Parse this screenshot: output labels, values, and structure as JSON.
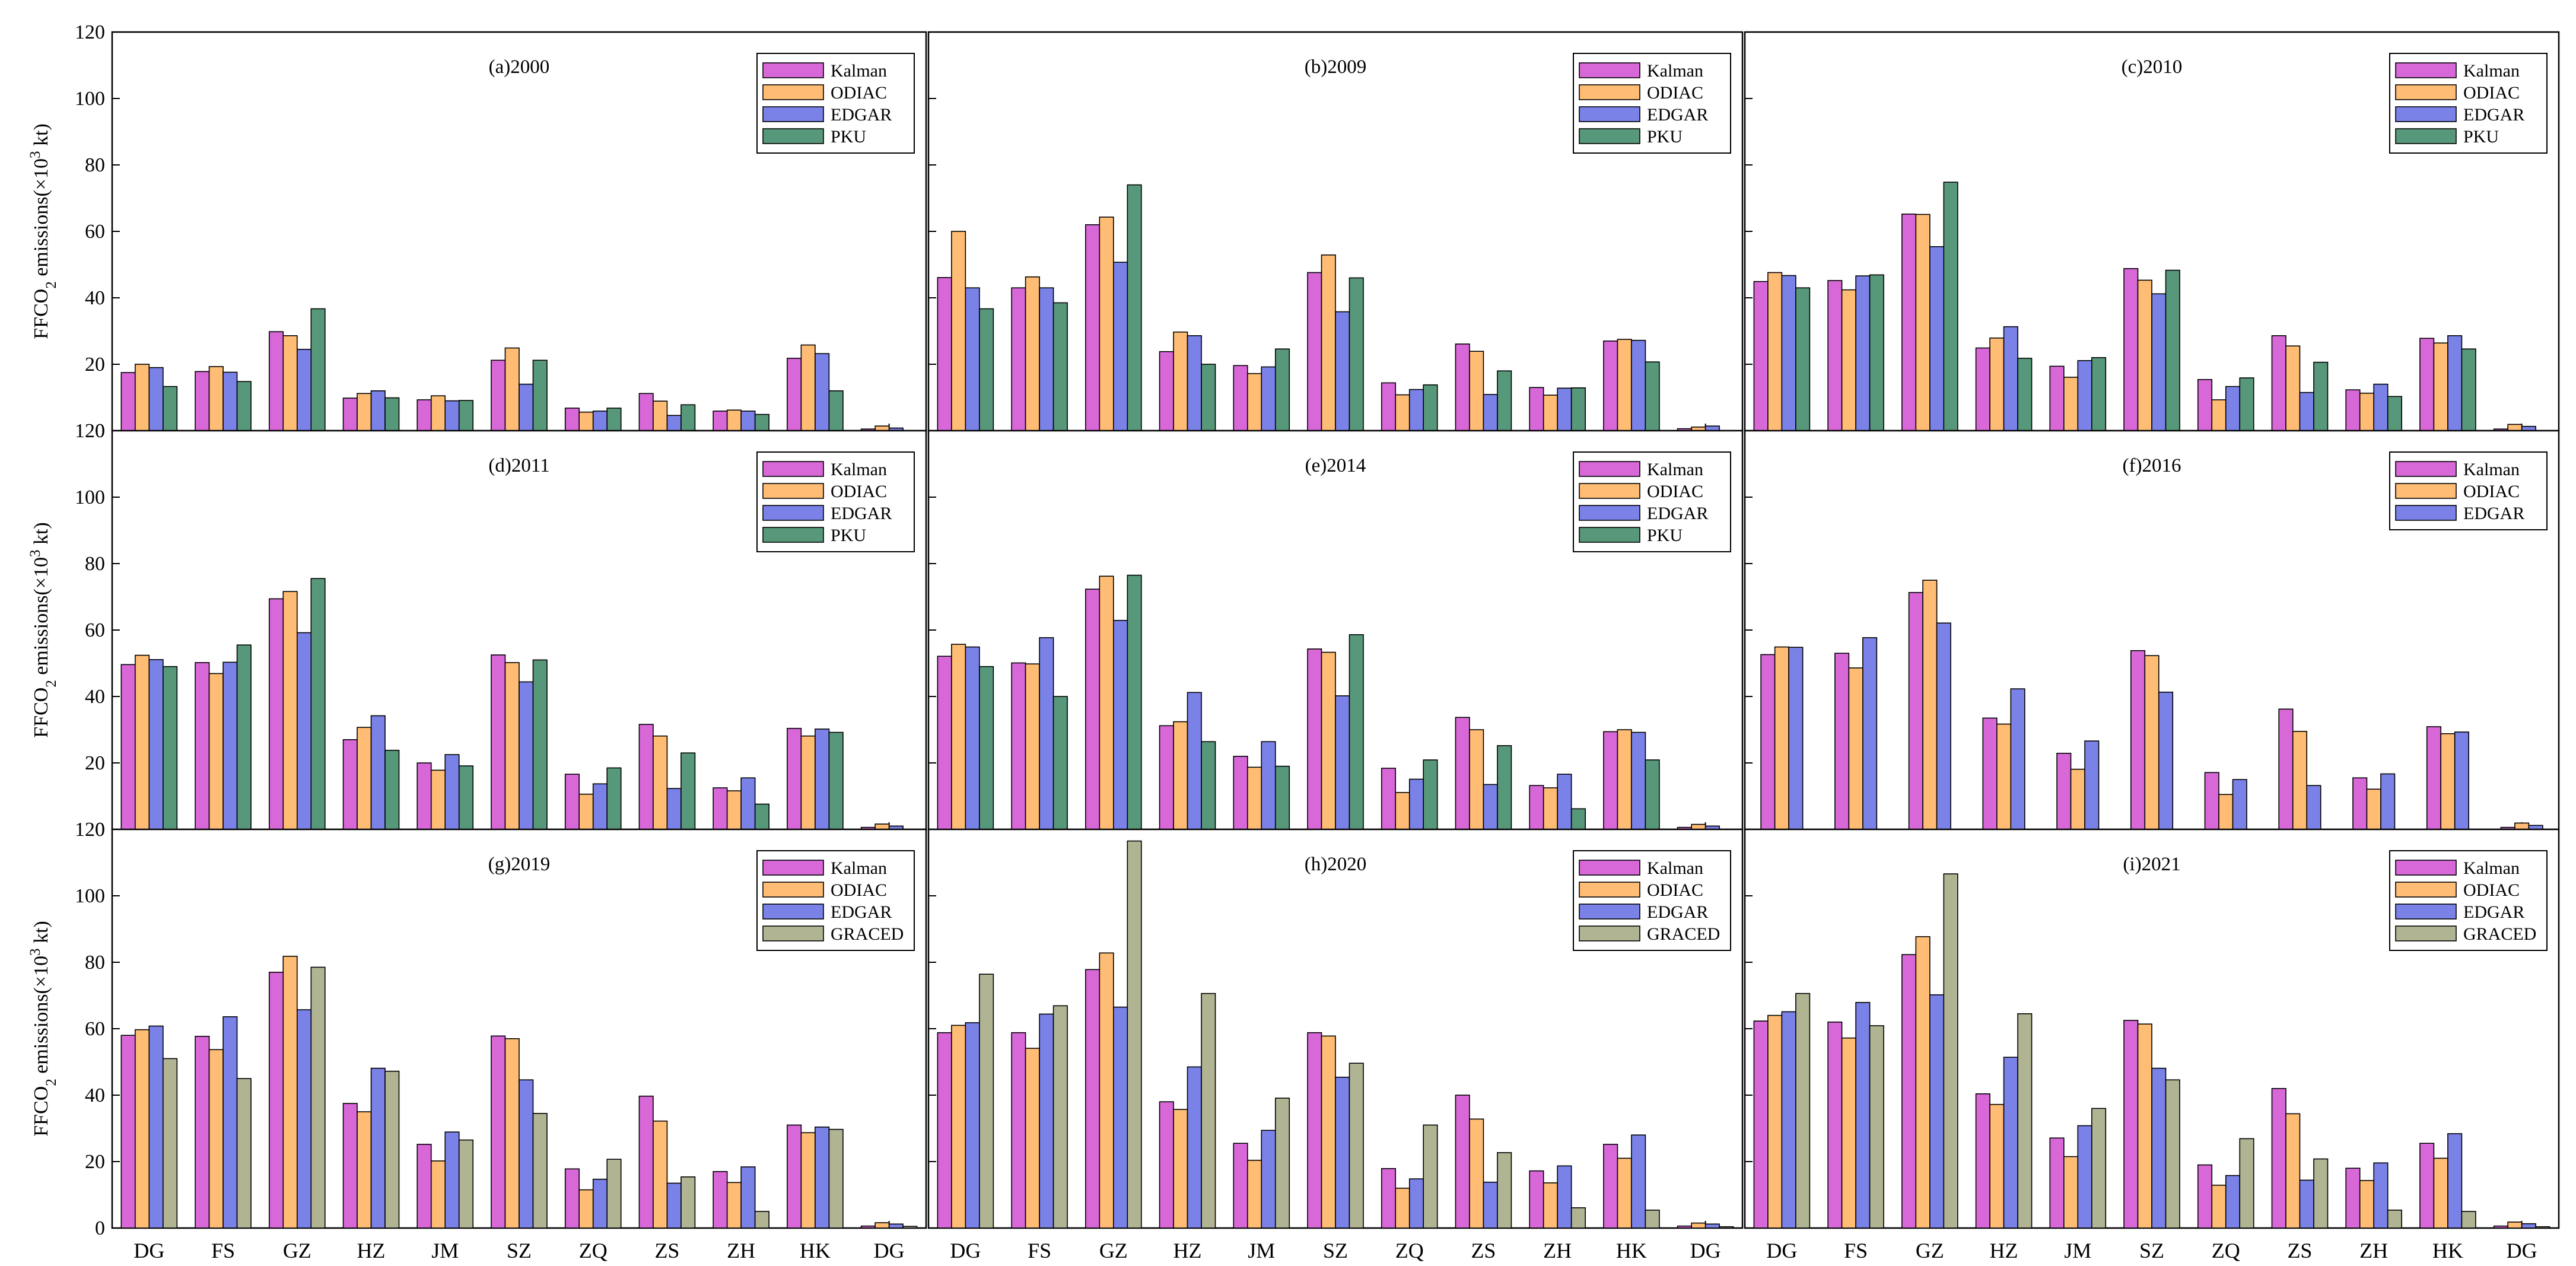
{
  "chart_data": {
    "type": "bar",
    "layout": "3x3 grid of grouped bar charts",
    "ylabel": "FFCO2 emissions(×10³ kt)",
    "ylabel_parts": {
      "main": "FFCO",
      "sub": "2",
      "mid": " emissions(×10",
      "sup": "3",
      "end": " kt)"
    },
    "ylim": [
      0,
      120
    ],
    "yticks": [
      "0",
      "20",
      "40",
      "60",
      "80",
      "100",
      "120"
    ],
    "categories": [
      "DG",
      "FS",
      "GZ",
      "HZ",
      "JM",
      "SZ",
      "ZQ",
      "ZS",
      "ZH",
      "HK",
      "DG"
    ],
    "series_colors": {
      "Kalman": "#d868d8",
      "ODIAC": "#ffbc74",
      "EDGAR": "#7a82e8",
      "PKU": "#58987a",
      "GRACED": "#b0b493"
    },
    "panels": [
      {
        "title": "(a)2000",
        "series": [
          {
            "name": "Kalman",
            "values": [
              17.5,
              17.8,
              29.8,
              9.8,
              9.3,
              21.2,
              6.8,
              11.2,
              5.9,
              21.8,
              0.5
            ]
          },
          {
            "name": "ODIAC",
            "values": [
              20,
              19.3,
              28.6,
              11.2,
              10.5,
              24.9,
              5.6,
              8.9,
              6.2,
              25.8,
              1.4
            ]
          },
          {
            "name": "EDGAR",
            "values": [
              19,
              17.6,
              24.5,
              12,
              9,
              14,
              5.9,
              4.6,
              5.9,
              23.2,
              0.8
            ]
          },
          {
            "name": "PKU",
            "values": [
              13.3,
              14.8,
              36.7,
              9.9,
              9.1,
              21.2,
              6.8,
              7.8,
              4.9,
              12,
              0
            ]
          }
        ]
      },
      {
        "title": "(b)2009",
        "series": [
          {
            "name": "Kalman",
            "values": [
              46.1,
              43,
              62,
              23.8,
              19.6,
              47.6,
              14.4,
              26.1,
              13,
              27,
              0.6
            ]
          },
          {
            "name": "ODIAC",
            "values": [
              60,
              46.3,
              64.3,
              29.7,
              17.2,
              52.9,
              10.8,
              23.9,
              10.7,
              27.5,
              1.1
            ]
          },
          {
            "name": "EDGAR",
            "values": [
              43,
              43,
              50.7,
              28.6,
              19.2,
              35.8,
              12.4,
              10.9,
              12.8,
              27.2,
              1.4
            ]
          },
          {
            "name": "PKU",
            "values": [
              36.7,
              38.5,
              74,
              20,
              24.6,
              46,
              13.8,
              18,
              12.9,
              20.7,
              0
            ]
          }
        ]
      },
      {
        "title": "(c)2010",
        "series": [
          {
            "name": "Kalman",
            "values": [
              44.9,
              45.2,
              65.2,
              24.9,
              19.4,
              48.8,
              15.4,
              28.6,
              12.3,
              27.8,
              0.5
            ]
          },
          {
            "name": "ODIAC",
            "values": [
              47.6,
              42.4,
              65.1,
              27.9,
              16.1,
              45.3,
              9.3,
              25.5,
              11.3,
              26.4,
              1.9
            ]
          },
          {
            "name": "EDGAR",
            "values": [
              46.7,
              46.6,
              55.4,
              31.3,
              21.1,
              41.2,
              13.3,
              11.5,
              14,
              28.6,
              1.3
            ]
          },
          {
            "name": "PKU",
            "values": [
              43,
              46.9,
              74.8,
              21.8,
              22,
              48.3,
              15.9,
              20.6,
              10.3,
              24.6,
              0
            ]
          }
        ]
      },
      {
        "title": "(d)2011",
        "series": [
          {
            "name": "Kalman",
            "values": [
              49.6,
              50.2,
              69.4,
              27,
              20,
              52.5,
              16.6,
              31.6,
              12.5,
              30.4,
              0.6
            ]
          },
          {
            "name": "ODIAC",
            "values": [
              52.4,
              46.9,
              71.6,
              30.7,
              17.8,
              50.2,
              10.6,
              28.1,
              11.6,
              28.1,
              1.6
            ]
          },
          {
            "name": "EDGAR",
            "values": [
              51.1,
              50.3,
              59.2,
              34.2,
              22.5,
              44.4,
              13.7,
              12.3,
              15.5,
              30.2,
              1
            ]
          },
          {
            "name": "PKU",
            "values": [
              49,
              55.5,
              75.5,
              23.8,
              19.1,
              51,
              18.5,
              23,
              7.6,
              29.2,
              0
            ]
          }
        ]
      },
      {
        "title": "(e)2014",
        "series": [
          {
            "name": "Kalman",
            "values": [
              52.1,
              50.1,
              72.3,
              31.2,
              22,
              54.3,
              18.4,
              33.7,
              13.2,
              29.4,
              0.6
            ]
          },
          {
            "name": "ODIAC",
            "values": [
              55.7,
              49.8,
              76.2,
              32.4,
              18.7,
              53.3,
              11.1,
              30,
              12.5,
              30,
              1.5
            ]
          },
          {
            "name": "EDGAR",
            "values": [
              54.9,
              57.7,
              62.9,
              41.2,
              26.4,
              40.2,
              15.1,
              13.5,
              16.6,
              29.2,
              1
            ]
          },
          {
            "name": "PKU",
            "values": [
              49,
              40,
              76.5,
              26.4,
              19,
              58.6,
              20.9,
              25.2,
              6.2,
              20.9,
              0
            ]
          }
        ]
      },
      {
        "title": "(f)2016",
        "series": [
          {
            "name": "Kalman",
            "values": [
              52.6,
              53,
              71.3,
              33.5,
              22.9,
              53.8,
              17.1,
              36.2,
              15.5,
              30.9,
              0.6
            ]
          },
          {
            "name": "ODIAC",
            "values": [
              54.9,
              48.6,
              75,
              31.7,
              18.1,
              52.3,
              10.5,
              29.5,
              12.1,
              28.8,
              1.9
            ]
          },
          {
            "name": "EDGAR",
            "values": [
              54.8,
              57.7,
              62.1,
              42.3,
              26.6,
              41.3,
              15,
              13.2,
              16.7,
              29.3,
              1.2
            ]
          }
        ]
      },
      {
        "title": "(g)2019",
        "series": [
          {
            "name": "Kalman",
            "values": [
              58,
              57.7,
              77,
              37.5,
              25.2,
              57.8,
              17.8,
              39.7,
              17,
              31,
              0.6
            ]
          },
          {
            "name": "ODIAC",
            "values": [
              59.7,
              53.7,
              81.8,
              35,
              20.2,
              57,
              11.5,
              32.2,
              13.7,
              28.7,
              1.6
            ]
          },
          {
            "name": "EDGAR",
            "values": [
              60.8,
              63.6,
              65.7,
              48.1,
              28.9,
              44.6,
              14.7,
              13.5,
              18.4,
              30.4,
              1.2
            ]
          },
          {
            "name": "GRACED",
            "values": [
              51,
              45,
              78.5,
              47.2,
              26.5,
              34.5,
              20.7,
              15.4,
              5,
              29.7,
              0.5
            ]
          }
        ]
      },
      {
        "title": "(h)2020",
        "series": [
          {
            "name": "Kalman",
            "values": [
              58.8,
              58.8,
              77.8,
              38,
              25.5,
              58.8,
              17.9,
              40,
              17.2,
              25.2,
              0.6
            ]
          },
          {
            "name": "ODIAC",
            "values": [
              61,
              54.1,
              82.8,
              35.7,
              20.4,
              57.8,
              12,
              32.8,
              13.6,
              21,
              1.5
            ]
          },
          {
            "name": "EDGAR",
            "values": [
              61.8,
              64.4,
              66.5,
              48.5,
              29.4,
              45.4,
              14.8,
              13.8,
              18.7,
              28,
              1.2
            ]
          },
          {
            "name": "GRACED",
            "values": [
              76.4,
              66.9,
              116.5,
              70.6,
              39.1,
              49.6,
              31,
              22.7,
              6.1,
              5.4,
              0.4
            ]
          }
        ]
      },
      {
        "title": "(i)2021",
        "series": [
          {
            "name": "Kalman",
            "values": [
              62.3,
              62,
              82.3,
              40.4,
              27.1,
              62.5,
              19,
              42,
              18,
              25.5,
              0.6
            ]
          },
          {
            "name": "ODIAC",
            "values": [
              64,
              57.2,
              87.7,
              37.2,
              21.5,
              61.4,
              12.9,
              34.4,
              14.3,
              21,
              1.8
            ]
          },
          {
            "name": "EDGAR",
            "values": [
              65.1,
              67.9,
              70.2,
              51.4,
              30.8,
              48.1,
              15.8,
              14.4,
              19.6,
              28.4,
              1.3
            ]
          },
          {
            "name": "GRACED",
            "values": [
              70.6,
              60.9,
              106.6,
              64.5,
              36,
              44.6,
              26.9,
              20.8,
              5.4,
              5,
              0.4
            ]
          }
        ]
      }
    ]
  }
}
